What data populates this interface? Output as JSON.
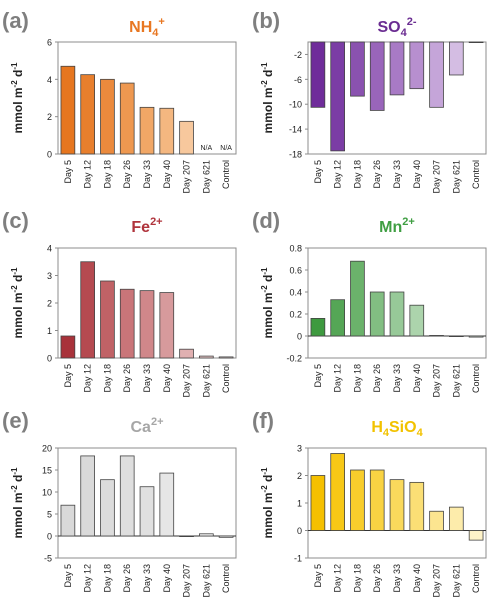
{
  "chart_data": [
    {
      "panel": "(a)",
      "type": "bar",
      "title": "NH4+",
      "title_main": "NH",
      "title_sub": "4",
      "title_sup": "+",
      "title_color": "#e87722",
      "ylabel": "mmol m-2 d-1",
      "ylim": [
        0,
        6
      ],
      "yticks": [
        0,
        2,
        4,
        6
      ],
      "categories": [
        "Day 5",
        "Day 12",
        "Day 18",
        "Day 26",
        "Day 33",
        "Day 40",
        "Day 207",
        "Day 621",
        "Control"
      ],
      "values": [
        4.7,
        4.25,
        4.0,
        3.8,
        2.5,
        2.45,
        1.75,
        null,
        null
      ],
      "na_label": "N/A",
      "colors": [
        "#e6761f",
        "#e87f2d",
        "#eb8a3d",
        "#ee9850",
        "#f1a766",
        "#f4b780",
        "#f7c89d",
        "#ffffff",
        "#ffffff"
      ]
    },
    {
      "panel": "(b)",
      "type": "bar",
      "title": "SO42-",
      "title_main": "SO",
      "title_sub": "4",
      "title_sup": "2-",
      "title_color": "#6a2c91",
      "ylabel": "mmol m-2 d-1",
      "ylim": [
        -18,
        0
      ],
      "yticks": [
        -2,
        -6,
        -10,
        -14,
        -18
      ],
      "categories": [
        "Day 5",
        "Day 12",
        "Day 18",
        "Day 26",
        "Day 33",
        "Day 40",
        "Day 207",
        "Day 621",
        "Control"
      ],
      "values": [
        -10.5,
        -17.5,
        -8.7,
        -11.0,
        -8.5,
        -7.5,
        -10.5,
        -5.3,
        0
      ],
      "colors": [
        "#6f2c9a",
        "#7b3da5",
        "#8a52af",
        "#9965ba",
        "#a87ac5",
        "#b78fcf",
        "#c5a5d9",
        "#d4bde3",
        "#e5d7ee"
      ]
    },
    {
      "panel": "(c)",
      "type": "bar",
      "title": "Fe2+",
      "title_main": "Fe",
      "title_sub": "",
      "title_sup": "2+",
      "title_color": "#b0343c",
      "ylabel": "mmol m-2 d-1",
      "ylim": [
        0,
        4
      ],
      "yticks": [
        0,
        1,
        2,
        3,
        4
      ],
      "categories": [
        "Day 5",
        "Day 12",
        "Day 18",
        "Day 26",
        "Day 33",
        "Day 40",
        "Day 207",
        "Day 621",
        "Control"
      ],
      "values": [
        0.8,
        3.5,
        2.8,
        2.5,
        2.45,
        2.38,
        0.32,
        0.07,
        0.04
      ],
      "colors": [
        "#a8323a",
        "#b54a50",
        "#c06266",
        "#c97579",
        "#d0878a",
        "#d79a9c",
        "#e0b0b1",
        "#e9c8c8",
        "#f1dcdc"
      ]
    },
    {
      "panel": "(d)",
      "type": "bar",
      "title": "Mn2+",
      "title_main": "Mn",
      "title_sub": "",
      "title_sup": "2+",
      "title_color": "#3f9e42",
      "ylabel": "mmol m-2 d-1",
      "ylim": [
        -0.2,
        0.8
      ],
      "yticks": [
        -0.2,
        0,
        0.2,
        0.4,
        0.6,
        0.8
      ],
      "categories": [
        "Day 5",
        "Day 12",
        "Day 18",
        "Day 26",
        "Day 33",
        "Day 40",
        "Day 207",
        "Day 621",
        "Control"
      ],
      "values": [
        0.16,
        0.33,
        0.68,
        0.4,
        0.4,
        0.28,
        0.005,
        0,
        -0.01
      ],
      "colors": [
        "#3e9a3f",
        "#55a656",
        "#6bb26b",
        "#82be82",
        "#97c998",
        "#acd4ac",
        "#c3e0c3",
        "#d7ead7",
        "#e6f2e6"
      ]
    },
    {
      "panel": "(e)",
      "type": "bar",
      "title": "Ca2+",
      "title_main": "Ca",
      "title_sub": "",
      "title_sup": "2+",
      "title_color": "#a6a6a6",
      "ylabel": "mmol m-2 d-1",
      "ylim": [
        -5,
        20
      ],
      "yticks": [
        -5,
        0,
        5,
        10,
        15,
        20
      ],
      "categories": [
        "Day 5",
        "Day 12",
        "Day 18",
        "Day 26",
        "Day 33",
        "Day 40",
        "Day 207",
        "Day 621",
        "Control"
      ],
      "values": [
        7.0,
        18.2,
        12.8,
        18.2,
        11.2,
        14.3,
        0,
        0.5,
        -0.3
      ],
      "colors": [
        "#d9d9d9",
        "#dadada",
        "#dcdcdc",
        "#dedede",
        "#e0e0e0",
        "#e6e6e6",
        "#ececec",
        "#f0f0f0",
        "#f5f5f5"
      ]
    },
    {
      "panel": "(f)",
      "type": "bar",
      "title": "H4SiO4",
      "title_main": "H",
      "title_sub": "4",
      "title_tail": "SiO",
      "title_sub2": "4",
      "title_sup": "",
      "title_color": "#f2c200",
      "ylabel": "mmol m-2 d-1",
      "ylim": [
        -1,
        3
      ],
      "yticks": [
        -1,
        0,
        1,
        2,
        3
      ],
      "categories": [
        "Day 5",
        "Day 12",
        "Day 18",
        "Day 26",
        "Day 33",
        "Day 40",
        "Day 207",
        "Day 621",
        "Control"
      ],
      "values": [
        2.0,
        2.8,
        2.2,
        2.2,
        1.85,
        1.75,
        0.7,
        0.85,
        -0.35
      ],
      "colors": [
        "#f5c000",
        "#f7c816",
        "#f8cd2c",
        "#f9d343",
        "#fad95c",
        "#fbdf75",
        "#fce590",
        "#fdecab",
        "#fef3c8"
      ]
    }
  ]
}
